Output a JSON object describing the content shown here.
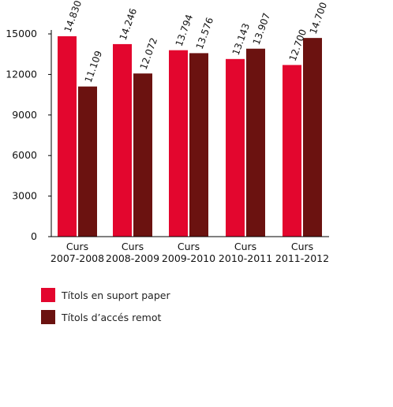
{
  "chart_data": {
    "type": "bar",
    "categories": [
      "Curs\n2007-2008",
      "Curs\n2008-2009",
      "Curs\n2009-2010",
      "Curs\n2010-2011",
      "Curs\n2011-2012"
    ],
    "series": [
      {
        "name": "Títols en suport paper",
        "color": "#e3062e",
        "values": [
          14830,
          14246,
          13794,
          13143,
          12700
        ],
        "labels": [
          "14.830",
          "14.246",
          "13.794",
          "13.143",
          "12.700"
        ]
      },
      {
        "name": "Títols d’accés remot",
        "color": "#6b1210",
        "values": [
          11109,
          12072,
          13576,
          13907,
          14700
        ],
        "labels": [
          "11.109",
          "12.072",
          "13.576",
          "13.907",
          "14.700"
        ]
      }
    ],
    "yticks": [
      "0",
      "3000",
      "6000",
      "9000",
      "12000",
      "15000"
    ],
    "ylim": [
      0,
      15000
    ],
    "grid": false,
    "legend_position": "bottom-left"
  }
}
